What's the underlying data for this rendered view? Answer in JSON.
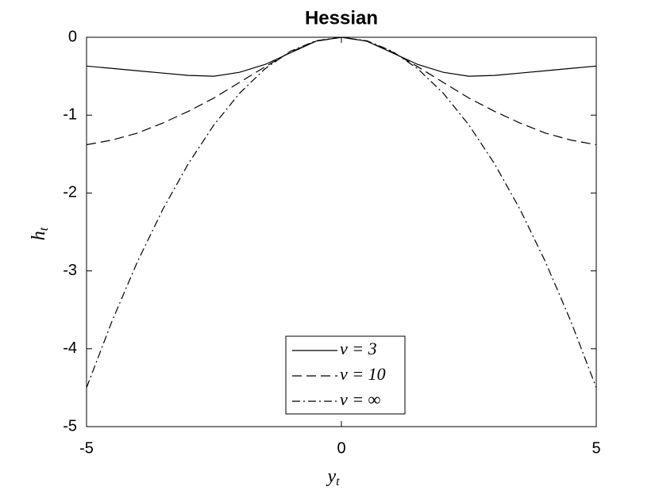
{
  "chart_data": {
    "type": "line",
    "title": "Hessian",
    "x_label": {
      "base": "y",
      "sub": "t"
    },
    "y_label": {
      "base": "h",
      "sub": "t"
    },
    "x": [
      -5,
      -4.5,
      -4,
      -3.5,
      -3,
      -2.5,
      -2,
      -1.5,
      -1,
      -0.5,
      0,
      0.5,
      1,
      1.5,
      2,
      2.5,
      3,
      3.5,
      4,
      4.5,
      5
    ],
    "series": [
      {
        "name": "ν = 3",
        "color": "#000000",
        "style": "solid",
        "values": [
          -0.37,
          -0.4,
          -0.43,
          -0.46,
          -0.49,
          -0.5,
          -0.45,
          -0.35,
          -0.2,
          -0.05,
          0,
          -0.05,
          -0.2,
          -0.35,
          -0.45,
          -0.5,
          -0.49,
          -0.46,
          -0.43,
          -0.4,
          -0.37
        ]
      },
      {
        "name": "ν = 10",
        "color": "#000000",
        "style": "dashed",
        "values": [
          -1.38,
          -1.32,
          -1.23,
          -1.1,
          -0.95,
          -0.78,
          -0.58,
          -0.38,
          -0.19,
          -0.05,
          0,
          -0.05,
          -0.19,
          -0.38,
          -0.58,
          -0.78,
          -0.95,
          -1.1,
          -1.23,
          -1.32,
          -1.38
        ]
      },
      {
        "name": "ν = ∞",
        "color": "#000000",
        "style": "dashdot",
        "values": [
          -4.5,
          -3.645,
          -2.88,
          -2.205,
          -1.62,
          -1.125,
          -0.72,
          -0.405,
          -0.18,
          -0.045,
          0,
          -0.045,
          -0.18,
          -0.405,
          -0.72,
          -1.125,
          -1.62,
          -2.205,
          -2.88,
          -3.645,
          -4.5
        ]
      }
    ],
    "xlim": [
      -5,
      5
    ],
    "xticks": [
      -5,
      0,
      5
    ],
    "ylim": [
      -5,
      0
    ],
    "yticks": [
      -5,
      -4,
      -3,
      -2,
      -1,
      0
    ],
    "grid": false,
    "legend": "bottom-center"
  }
}
